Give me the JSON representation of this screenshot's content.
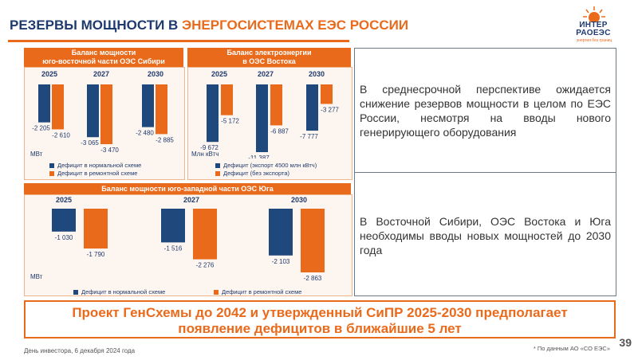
{
  "title": {
    "part1": "РЕЗЕРВЫ МОЩНОСТИ В ",
    "part2": "ЭНЕРГОСИСТЕМАХ ЕЭС РОССИИ"
  },
  "logo": {
    "line1": "ИНТЕР",
    "line2": "РАОЕЭС",
    "tagline": "энергия без границ"
  },
  "colors": {
    "blue": "#1f497d",
    "orange": "#ea6a1c"
  },
  "panels": {
    "siberia": {
      "title_line1": "Баланс мощности",
      "title_line2": "юго-восточной части ОЭС Сибири",
      "unit": "МВт",
      "legend": [
        "Дефицит в нормальной схеме",
        "Дефицит в ремонтной схеме"
      ]
    },
    "east": {
      "title_line1": "Баланс электроэнергии",
      "title_line2": "в ОЭС Востока",
      "unit": "Млн кВтч",
      "legend": [
        "Дефицит (экспорт 4500 млн кВтч)",
        "Дефицит (без экспорта)"
      ]
    },
    "south": {
      "title": "Баланс мощности юго-западной части ОЭС Юга",
      "unit": "МВт",
      "legend": [
        "Дефицит в нормальной схеме",
        "Дефицит в ремонтной схеме"
      ]
    }
  },
  "chart_data": [
    {
      "type": "bar",
      "title": "Баланс мощности юго-восточной части ОЭС Сибири",
      "categories": [
        "2025",
        "2027",
        "2030"
      ],
      "ylabel": "МВт",
      "series": [
        {
          "name": "Дефицит в нормальной схеме",
          "values": [
            -2205,
            -3065,
            -2480
          ],
          "labels": [
            "-2 205",
            "-3 065",
            "-2 480"
          ]
        },
        {
          "name": "Дефицит в ремонтной схеме",
          "values": [
            -2610,
            -3470,
            -2885
          ],
          "labels": [
            "-2 610",
            "-3 470",
            "-2 885"
          ]
        }
      ]
    },
    {
      "type": "bar",
      "title": "Баланс электроэнергии в ОЭС Востока",
      "categories": [
        "2025",
        "2027",
        "2030"
      ],
      "ylabel": "Млн кВтч",
      "series": [
        {
          "name": "Дефицит (экспорт 4500 млн кВтч)",
          "values": [
            -9672,
            -11387,
            -7777
          ],
          "labels": [
            "-9 672",
            "-11 387",
            "-7 777"
          ]
        },
        {
          "name": "Дефицит (без экспорта)",
          "values": [
            -5172,
            -6887,
            -3277
          ],
          "labels": [
            "-5 172",
            "-6 887",
            "-3 277"
          ]
        }
      ]
    },
    {
      "type": "bar",
      "title": "Баланс мощности юго-западной части ОЭС Юга",
      "categories": [
        "2025",
        "2027",
        "2030"
      ],
      "ylabel": "МВт",
      "series": [
        {
          "name": "Дефицит в нормальной схеме",
          "values": [
            -1030,
            -1516,
            -2103
          ],
          "labels": [
            "-1 030",
            "-1 516",
            "-2 103"
          ]
        },
        {
          "name": "Дефицит в ремонтной схеме",
          "values": [
            -1790,
            -2276,
            -2863
          ],
          "labels": [
            "-1 790",
            "-2 276",
            "-2 863"
          ]
        }
      ]
    }
  ],
  "text_right_1": "В среднесрочной перспективе ожидается снижение резервов мощности в целом по ЕЭС России, несмотря на вводы нового генерирующего оборудования",
  "text_right_2": "В Восточной Сибири, ОЭС Востока и Юга необходимы вводы новых мощностей до 2030 года",
  "bottom": {
    "line1": "Проект ГенСхемы до 2042 и утвержденный СиПР 2025-2030 предполагает",
    "line2": "появление дефицитов в ближайшие 5 лет"
  },
  "footer": {
    "left": "День инвестора, 6 декабря 2024 года",
    "right": "* По данным АО «СО ЕЭС»",
    "page": "39"
  }
}
